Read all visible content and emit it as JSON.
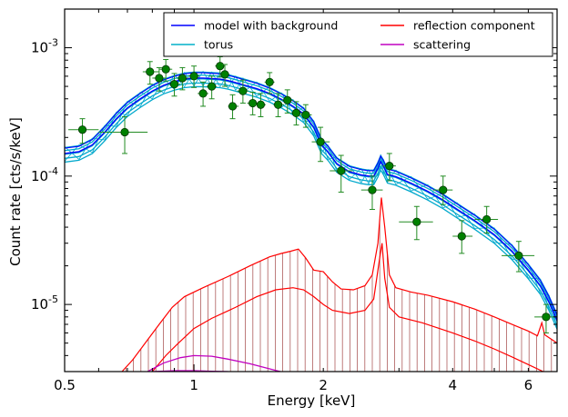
{
  "chart_data": {
    "type": "scatter",
    "xlabel": "Energy [keV]",
    "ylabel": "Count rate [cts/s/keV]",
    "xscale": "log",
    "yscale": "log",
    "xlim": [
      0.5,
      7.0
    ],
    "ylim": [
      3e-06,
      0.002
    ],
    "x_ticks": [
      {
        "value": 0.5,
        "label": "0.5"
      },
      {
        "value": 1,
        "label": "1"
      },
      {
        "value": 2,
        "label": "2"
      },
      {
        "value": 4,
        "label": "4"
      },
      {
        "value": 6,
        "label": "6"
      }
    ],
    "y_ticks": [
      {
        "value": 1e-05,
        "base": "10",
        "exp": "-5"
      },
      {
        "value": 0.0001,
        "base": "10",
        "exp": "-4"
      },
      {
        "value": 0.001,
        "base": "10",
        "exp": "-3"
      }
    ],
    "legend": {
      "placement": "top-right",
      "columns": 2,
      "entries": [
        {
          "label": "model with background",
          "color": "#0000ff"
        },
        {
          "label": "reflection component",
          "color": "#ff0000"
        },
        {
          "label": "torus",
          "color": "#00b0c8"
        },
        {
          "label": "scattering",
          "color": "#c000c0"
        }
      ]
    },
    "colors": {
      "model": "#0000ff",
      "torus": "#00a8cc",
      "reflection": "#ff0000",
      "scattering": "#c000c0",
      "data_marker": "#008000",
      "data_error": "#228b22",
      "hatch": "#a04040"
    },
    "data_points": [
      {
        "x": 0.55,
        "y": 0.00023,
        "xerr": [
          0.51,
          0.6
        ],
        "yerr": [
          0.00018,
          0.00028
        ]
      },
      {
        "x": 0.69,
        "y": 0.00022,
        "xerr": [
          0.6,
          0.78
        ],
        "yerr": [
          0.00015,
          0.00029
        ]
      },
      {
        "x": 0.79,
        "y": 0.00065,
        "xerr": [
          0.76,
          0.83
        ],
        "yerr": [
          0.00052,
          0.00078
        ]
      },
      {
        "x": 0.83,
        "y": 0.00058,
        "xerr": [
          0.8,
          0.86
        ],
        "yerr": [
          0.00046,
          0.0007
        ]
      },
      {
        "x": 0.86,
        "y": 0.00068,
        "xerr": [
          0.83,
          0.89
        ],
        "yerr": [
          0.00055,
          0.00081
        ]
      },
      {
        "x": 0.9,
        "y": 0.00052,
        "xerr": [
          0.87,
          0.93
        ],
        "yerr": [
          0.00042,
          0.00063
        ]
      },
      {
        "x": 0.94,
        "y": 0.00058,
        "xerr": [
          0.91,
          0.97
        ],
        "yerr": [
          0.00047,
          0.0007
        ]
      },
      {
        "x": 1.0,
        "y": 0.0006,
        "xerr": [
          0.97,
          1.03
        ],
        "yerr": [
          0.00049,
          0.00072
        ]
      },
      {
        "x": 1.05,
        "y": 0.00044,
        "xerr": [
          1.02,
          1.08
        ],
        "yerr": [
          0.00035,
          0.00054
        ]
      },
      {
        "x": 1.1,
        "y": 0.0005,
        "xerr": [
          1.07,
          1.13
        ],
        "yerr": [
          0.0004,
          0.0006
        ]
      },
      {
        "x": 1.15,
        "y": 0.00072,
        "xerr": [
          1.12,
          1.18
        ],
        "yerr": [
          0.00059,
          0.00085
        ]
      },
      {
        "x": 1.18,
        "y": 0.00062,
        "xerr": [
          1.15,
          1.21
        ],
        "yerr": [
          0.0005,
          0.00074
        ]
      },
      {
        "x": 1.23,
        "y": 0.00035,
        "xerr": [
          1.2,
          1.27
        ],
        "yerr": [
          0.00028,
          0.00043
        ]
      },
      {
        "x": 1.3,
        "y": 0.00046,
        "xerr": [
          1.26,
          1.34
        ],
        "yerr": [
          0.00037,
          0.00056
        ]
      },
      {
        "x": 1.37,
        "y": 0.00037,
        "xerr": [
          1.33,
          1.41
        ],
        "yerr": [
          0.0003,
          0.00045
        ]
      },
      {
        "x": 1.43,
        "y": 0.00036,
        "xerr": [
          1.39,
          1.47
        ],
        "yerr": [
          0.00029,
          0.00044
        ]
      },
      {
        "x": 1.5,
        "y": 0.00054,
        "xerr": [
          1.46,
          1.54
        ],
        "yerr": [
          0.00044,
          0.00064
        ]
      },
      {
        "x": 1.57,
        "y": 0.00036,
        "xerr": [
          1.53,
          1.62
        ],
        "yerr": [
          0.00029,
          0.00044
        ]
      },
      {
        "x": 1.65,
        "y": 0.00039,
        "xerr": [
          1.6,
          1.7
        ],
        "yerr": [
          0.00031,
          0.00047
        ]
      },
      {
        "x": 1.73,
        "y": 0.00031,
        "xerr": [
          1.68,
          1.78
        ],
        "yerr": [
          0.00025,
          0.00038
        ]
      },
      {
        "x": 1.82,
        "y": 0.0003,
        "xerr": [
          1.77,
          1.88
        ],
        "yerr": [
          0.00024,
          0.00036
        ]
      },
      {
        "x": 1.97,
        "y": 0.000185,
        "xerr": [
          1.88,
          2.07
        ],
        "yerr": [
          0.00013,
          0.00024
        ]
      },
      {
        "x": 2.2,
        "y": 0.00011,
        "xerr": [
          2.07,
          2.34
        ],
        "yerr": [
          7.5e-05,
          0.000145
        ]
      },
      {
        "x": 2.6,
        "y": 7.8e-05,
        "xerr": [
          2.45,
          2.75
        ],
        "yerr": [
          5.5e-05,
          0.0001
        ]
      },
      {
        "x": 2.85,
        "y": 0.00012,
        "xerr": [
          2.75,
          2.95
        ],
        "yerr": [
          9.2e-05,
          0.00015
        ]
      },
      {
        "x": 3.3,
        "y": 4.4e-05,
        "xerr": [
          3.0,
          3.6
        ],
        "yerr": [
          3.2e-05,
          5.8e-05
        ]
      },
      {
        "x": 3.8,
        "y": 7.8e-05,
        "xerr": [
          3.6,
          4.0
        ],
        "yerr": [
          6e-05,
          0.0001
        ]
      },
      {
        "x": 4.2,
        "y": 3.4e-05,
        "xerr": [
          4.0,
          4.45
        ],
        "yerr": [
          2.5e-05,
          4.5e-05
        ]
      },
      {
        "x": 4.8,
        "y": 4.6e-05,
        "xerr": [
          4.5,
          5.1
        ],
        "yerr": [
          3.6e-05,
          5.8e-05
        ]
      },
      {
        "x": 5.7,
        "y": 2.4e-05,
        "xerr": [
          5.2,
          6.2
        ],
        "yerr": [
          1.8e-05,
          3.1e-05
        ]
      },
      {
        "x": 6.6,
        "y": 8e-06,
        "xerr": [
          6.2,
          7.0
        ],
        "yerr": [
          6e-06,
          1e-05
        ]
      }
    ],
    "model_curve": [
      [
        0.5,
        0.00015
      ],
      [
        0.54,
        0.000155
      ],
      [
        0.58,
        0.000175
      ],
      [
        0.62,
        0.00022
      ],
      [
        0.66,
        0.00028
      ],
      [
        0.7,
        0.00034
      ],
      [
        0.75,
        0.0004
      ],
      [
        0.8,
        0.00046
      ],
      [
        0.85,
        0.00051
      ],
      [
        0.9,
        0.000545
      ],
      [
        0.95,
        0.00057
      ],
      [
        1.0,
        0.00058
      ],
      [
        1.05,
        0.00058
      ],
      [
        1.1,
        0.000575
      ],
      [
        1.15,
        0.00057
      ],
      [
        1.2,
        0.000555
      ],
      [
        1.25,
        0.000535
      ],
      [
        1.3,
        0.000515
      ],
      [
        1.4,
        0.00048
      ],
      [
        1.5,
        0.00044
      ],
      [
        1.6,
        0.000395
      ],
      [
        1.7,
        0.00035
      ],
      [
        1.8,
        0.000305
      ],
      [
        1.9,
        0.00024
      ],
      [
        1.98,
        0.000175
      ],
      [
        2.05,
        0.000155
      ],
      [
        2.15,
        0.000125
      ],
      [
        2.3,
        0.000108
      ],
      [
        2.45,
        0.000102
      ],
      [
        2.55,
        0.0001
      ],
      [
        2.62,
        0.0001
      ],
      [
        2.68,
        0.000115
      ],
      [
        2.72,
        0.00013
      ],
      [
        2.76,
        0.00012
      ],
      [
        2.82,
        0.000103
      ],
      [
        2.95,
        9.9e-05
      ],
      [
        3.2,
        8.8e-05
      ],
      [
        3.5,
        7.6e-05
      ],
      [
        3.8,
        6.5e-05
      ],
      [
        4.1,
        5.5e-05
      ],
      [
        4.5,
        4.5e-05
      ],
      [
        5.0,
        3.5e-05
      ],
      [
        5.5,
        2.6e-05
      ],
      [
        6.0,
        1.85e-05
      ],
      [
        6.4,
        1.4e-05
      ],
      [
        6.7,
        1.05e-05
      ],
      [
        7.0,
        7.5e-06
      ]
    ],
    "reflection_upper": [
      [
        0.68,
        3e-06
      ],
      [
        0.72,
        3.7e-06
      ],
      [
        0.77,
        5e-06
      ],
      [
        0.83,
        7e-06
      ],
      [
        0.89,
        9.5e-06
      ],
      [
        0.95,
        1.15e-05
      ],
      [
        1.05,
        1.35e-05
      ],
      [
        1.2,
        1.65e-05
      ],
      [
        1.35,
        2e-05
      ],
      [
        1.5,
        2.35e-05
      ],
      [
        1.6,
        2.5e-05
      ],
      [
        1.68,
        2.6e-05
      ],
      [
        1.75,
        2.7e-05
      ],
      [
        1.82,
        2.3e-05
      ],
      [
        1.9,
        1.85e-05
      ],
      [
        2.0,
        1.8e-05
      ],
      [
        2.1,
        1.5e-05
      ],
      [
        2.2,
        1.32e-05
      ],
      [
        2.35,
        1.3e-05
      ],
      [
        2.5,
        1.4e-05
      ],
      [
        2.6,
        1.7e-05
      ],
      [
        2.68,
        3e-05
      ],
      [
        2.73,
        6.8e-05
      ],
      [
        2.78,
        4e-05
      ],
      [
        2.85,
        1.7e-05
      ],
      [
        2.95,
        1.35e-05
      ],
      [
        3.2,
        1.25e-05
      ],
      [
        3.5,
        1.18e-05
      ],
      [
        4.0,
        1.05e-05
      ],
      [
        4.5,
        9.2e-06
      ],
      [
        5.0,
        8e-06
      ],
      [
        5.5,
        7e-06
      ],
      [
        6.0,
        6.2e-06
      ],
      [
        6.3,
        5.7e-06
      ],
      [
        6.45,
        7.2e-06
      ],
      [
        6.55,
        5.8e-06
      ],
      [
        7.0,
        5e-06
      ]
    ],
    "reflection_lower": [
      [
        0.8,
        3e-06
      ],
      [
        0.86,
        4e-06
      ],
      [
        0.92,
        5e-06
      ],
      [
        1.0,
        6.5e-06
      ],
      [
        1.1,
        7.8e-06
      ],
      [
        1.25,
        9.5e-06
      ],
      [
        1.4,
        1.15e-05
      ],
      [
        1.55,
        1.3e-05
      ],
      [
        1.7,
        1.35e-05
      ],
      [
        1.8,
        1.3e-05
      ],
      [
        1.9,
        1.15e-05
      ],
      [
        2.0,
        1e-05
      ],
      [
        2.1,
        9e-06
      ],
      [
        2.3,
        8.5e-06
      ],
      [
        2.5,
        9e-06
      ],
      [
        2.62,
        1.1e-05
      ],
      [
        2.7,
        2.2e-05
      ],
      [
        2.74,
        3e-05
      ],
      [
        2.78,
        1.6e-05
      ],
      [
        2.85,
        9.5e-06
      ],
      [
        3.0,
        8e-06
      ],
      [
        3.4,
        7.2e-06
      ],
      [
        4.0,
        6e-06
      ],
      [
        4.5,
        5.2e-06
      ],
      [
        5.0,
        4.5e-06
      ],
      [
        5.5,
        3.9e-06
      ],
      [
        6.0,
        3.4e-06
      ],
      [
        6.5,
        3e-06
      ],
      [
        7.0,
        2.7e-06
      ]
    ],
    "scattering_upper": [
      [
        0.78,
        3e-06
      ],
      [
        0.85,
        3.5e-06
      ],
      [
        0.93,
        3.85e-06
      ],
      [
        1.0,
        4e-06
      ],
      [
        1.1,
        3.95e-06
      ],
      [
        1.2,
        3.75e-06
      ],
      [
        1.35,
        3.45e-06
      ],
      [
        1.5,
        3.15e-06
      ],
      [
        1.62,
        2.95e-06
      ]
    ],
    "scattering_lower": [
      [
        0.8,
        3e-06
      ],
      [
        0.9,
        3.05e-06
      ],
      [
        1.0,
        3.05e-06
      ],
      [
        1.1,
        3.02e-06
      ],
      [
        1.2,
        3e-06
      ]
    ]
  }
}
